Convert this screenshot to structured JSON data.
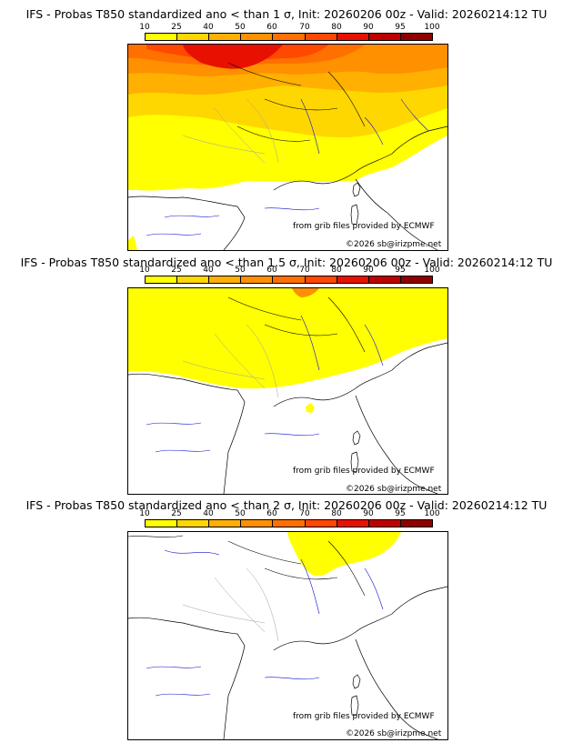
{
  "panels": [
    {
      "title": "IFS - Probas T850  standardized ano < than 1 σ, Init: 20260206 00z - Valid: 20260214:12 TU",
      "credit_source": "from grib files provided by ECMWF",
      "credit_copy": "©2026 sb@irizpme.net"
    },
    {
      "title": "IFS - Probas T850  standardized ano < than 1.5 σ, Init: 20260206 00z - Valid: 20260214:12 TU",
      "credit_source": "from grib files provided by ECMWF",
      "credit_copy": "©2026 sb@irizpme.net"
    },
    {
      "title": "IFS - Probas T850  standardized ano < than 2 σ, Init: 20260206 00z - Valid: 20260214:12 TU",
      "credit_source": "from grib files provided by ECMWF",
      "credit_copy": "©2026 sb@irizpme.net"
    }
  ],
  "colorbar": {
    "ticks": [
      "10",
      "25",
      "40",
      "50",
      "60",
      "70",
      "80",
      "90",
      "95",
      "100"
    ],
    "colors": [
      "#ffff00",
      "#ffd700",
      "#ffb000",
      "#ff9000",
      "#ff7000",
      "#ff4800",
      "#e81000",
      "#c00000",
      "#900000"
    ]
  },
  "colors": {
    "land_outline": "#000000",
    "borders": "#a0a0a0",
    "rivers": "#1010d0"
  }
}
